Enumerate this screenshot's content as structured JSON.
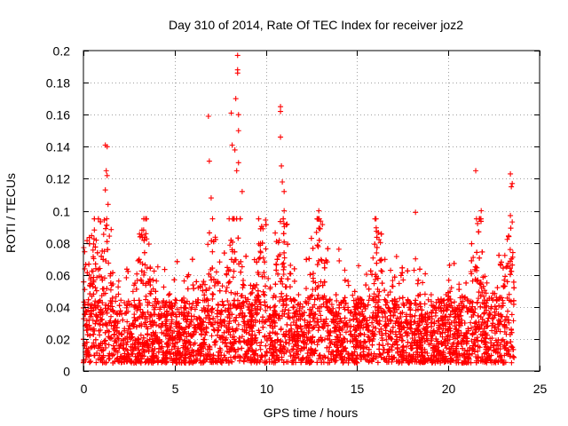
{
  "chart_data": {
    "type": "scatter",
    "title": "Day 310 of 2014, Rate Of TEC Index for receiver joz2",
    "xlabel": "GPS time / hours",
    "ylabel": "ROTI / TECUs",
    "xlim": [
      0,
      25
    ],
    "ylim": [
      0,
      0.2
    ],
    "x_ticks": [
      "0",
      "5",
      "10",
      "15",
      "20",
      "25"
    ],
    "y_ticks": [
      "0",
      "0.02",
      "0.04",
      "0.06",
      "0.08",
      "0.1",
      "0.12",
      "0.14",
      "0.16",
      "0.18",
      "0.2"
    ],
    "grid": true,
    "marker": "+",
    "color": "#ff0000",
    "series": [
      {
        "name": "ROTI",
        "notable_points": [
          {
            "x": 8.45,
            "y": 0.197
          },
          {
            "x": 8.45,
            "y": 0.188
          },
          {
            "x": 8.45,
            "y": 0.186
          },
          {
            "x": 8.35,
            "y": 0.17
          },
          {
            "x": 8.1,
            "y": 0.161
          },
          {
            "x": 8.5,
            "y": 0.16
          },
          {
            "x": 6.85,
            "y": 0.159
          },
          {
            "x": 10.8,
            "y": 0.165
          },
          {
            "x": 10.8,
            "y": 0.162
          },
          {
            "x": 10.8,
            "y": 0.146
          },
          {
            "x": 8.5,
            "y": 0.15
          },
          {
            "x": 1.2,
            "y": 0.141
          },
          {
            "x": 1.3,
            "y": 0.14
          },
          {
            "x": 6.9,
            "y": 0.131
          },
          {
            "x": 8.3,
            "y": 0.138
          },
          {
            "x": 8.15,
            "y": 0.141
          },
          {
            "x": 8.5,
            "y": 0.13
          },
          {
            "x": 8.4,
            "y": 0.125
          },
          {
            "x": 10.85,
            "y": 0.128
          },
          {
            "x": 10.9,
            "y": 0.118
          },
          {
            "x": 11.0,
            "y": 0.112
          },
          {
            "x": 1.25,
            "y": 0.125
          },
          {
            "x": 1.3,
            "y": 0.122
          },
          {
            "x": 1.2,
            "y": 0.113
          },
          {
            "x": 1.35,
            "y": 0.104
          },
          {
            "x": 21.5,
            "y": 0.125
          },
          {
            "x": 23.4,
            "y": 0.123
          },
          {
            "x": 23.5,
            "y": 0.117
          },
          {
            "x": 23.45,
            "y": 0.115
          },
          {
            "x": 23.4,
            "y": 0.097
          },
          {
            "x": 23.5,
            "y": 0.093
          },
          {
            "x": 21.8,
            "y": 0.1
          },
          {
            "x": 21.6,
            "y": 0.092
          },
          {
            "x": 18.2,
            "y": 0.099
          },
          {
            "x": 12.9,
            "y": 0.1
          },
          {
            "x": 11.0,
            "y": 0.1
          },
          {
            "x": 8.7,
            "y": 0.112
          },
          {
            "x": 7.0,
            "y": 0.108
          },
          {
            "x": 9.6,
            "y": 0.095
          },
          {
            "x": 3.3,
            "y": 0.088
          },
          {
            "x": 16.2,
            "y": 0.082
          },
          {
            "x": 18.2,
            "y": 0.07
          },
          {
            "x": 14.0,
            "y": 0.076
          },
          {
            "x": 0.6,
            "y": 0.088
          }
        ],
        "bulk_range": [
          0.005,
          0.045
        ],
        "burst_hours": [
          0.5,
          1.2,
          3.3,
          7.0,
          8.2,
          8.5,
          9.7,
          10.9,
          12.9,
          16.1,
          21.6,
          23.4
        ]
      }
    ]
  }
}
